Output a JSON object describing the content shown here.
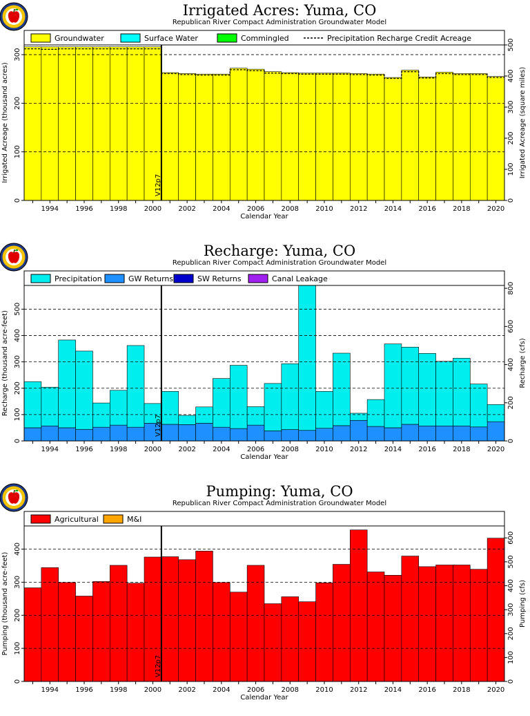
{
  "chart_data": [
    {
      "type": "area",
      "title": "Irrigated Acres: Yuma, CO",
      "subtitle": "Republican River Compact Administration Groundwater Model",
      "xlabel": "Calendar Year",
      "ylabel": "Irrigated Acreage (thousand acres)",
      "ylabel_right": "Irrigated Acreage (square miles)",
      "xlim": [
        1992.5,
        2020.5
      ],
      "ylim": [
        0,
        320
      ],
      "ylim_right": [
        0,
        500
      ],
      "x_ticks": [
        "1994",
        "1996",
        "1998",
        "2000",
        "2002",
        "2004",
        "2006",
        "2008",
        "2010",
        "2012",
        "2014",
        "2016",
        "2018",
        "2020"
      ],
      "y_ticks": [
        "0",
        "100",
        "200",
        "300"
      ],
      "y_ticks_right": [
        "0",
        "100",
        "200",
        "300",
        "400",
        "500"
      ],
      "grid": true,
      "legend_position": "top",
      "legend": [
        {
          "name": "Groundwater",
          "color": "#ffff00",
          "style": "box"
        },
        {
          "name": "Surface Water",
          "color": "#00ffff",
          "style": "box"
        },
        {
          "name": "Commingled",
          "color": "#00ff00",
          "style": "box"
        },
        {
          "name": "Precipitation Recharge Credit Acreage",
          "color": "#000000",
          "style": "dashed"
        }
      ],
      "x": [
        1993,
        1994,
        1995,
        1996,
        1997,
        1998,
        1999,
        2000,
        2001,
        2002,
        2003,
        2004,
        2005,
        2006,
        2007,
        2008,
        2009,
        2010,
        2011,
        2012,
        2013,
        2014,
        2015,
        2016,
        2017,
        2018,
        2019,
        2020
      ],
      "series": [
        {
          "name": "Groundwater",
          "color": "#ffff00",
          "values": [
            316,
            316,
            316,
            316,
            316,
            316,
            316,
            316,
            263,
            261,
            260,
            260,
            272,
            270,
            265,
            263,
            262,
            262,
            262,
            261,
            260,
            253,
            268,
            254,
            264,
            261,
            261,
            255
          ]
        },
        {
          "name": "Surface Water",
          "color": "#00ffff",
          "values": [
            0,
            0,
            0,
            0,
            0,
            0,
            0,
            0,
            0,
            0,
            0,
            0,
            0,
            0,
            0,
            0,
            0,
            0,
            0,
            0,
            0,
            0,
            0,
            0,
            0,
            0,
            0,
            0
          ]
        },
        {
          "name": "Commingled",
          "color": "#00ff00",
          "values": [
            0,
            0,
            0,
            0,
            0,
            0,
            0,
            0,
            0,
            0,
            0,
            0,
            0,
            0,
            0,
            0,
            0,
            0,
            0,
            0,
            0,
            0,
            0,
            0,
            0,
            0,
            0,
            0
          ]
        },
        {
          "name": "Precipitation Recharge Credit Acreage",
          "color": "#000000",
          "values": [
            312,
            311,
            312,
            312,
            312,
            312,
            312,
            312,
            261,
            259,
            258,
            258,
            269,
            267,
            262,
            261,
            260,
            260,
            260,
            259,
            258,
            251,
            265,
            252,
            261,
            259,
            259,
            253
          ]
        }
      ],
      "marker": {
        "x": 2000.5,
        "label": "V12p7"
      }
    },
    {
      "type": "area",
      "title": "Recharge: Yuma, CO",
      "subtitle": "Republican River Compact Administration Groundwater Model",
      "xlabel": "Calendar Year",
      "ylabel": "Recharge (thousand acre-feet)",
      "ylabel_right": "Recharge (cfs)",
      "xlim": [
        1992.5,
        2020.5
      ],
      "ylim": [
        0,
        590
      ],
      "ylim_right": [
        0,
        815
      ],
      "x_ticks": [
        "1994",
        "1996",
        "1998",
        "2000",
        "2002",
        "2004",
        "2006",
        "2008",
        "2010",
        "2012",
        "2014",
        "2016",
        "2018",
        "2020"
      ],
      "y_ticks": [
        "0",
        "100",
        "200",
        "300",
        "400",
        "500"
      ],
      "y_ticks_right": [
        "0",
        "200",
        "400",
        "600",
        "800"
      ],
      "grid": true,
      "legend_position": "top",
      "legend": [
        {
          "name": "Precipitation",
          "color": "#00eeee",
          "style": "box"
        },
        {
          "name": "GW Returns",
          "color": "#1e90ff",
          "style": "box"
        },
        {
          "name": "SW Returns",
          "color": "#0000cd",
          "style": "box"
        },
        {
          "name": "Canal Leakage",
          "color": "#a020f0",
          "style": "box"
        }
      ],
      "x": [
        1993,
        1994,
        1995,
        1996,
        1997,
        1998,
        1999,
        2000,
        2001,
        2002,
        2003,
        2004,
        2005,
        2006,
        2007,
        2008,
        2009,
        2010,
        2011,
        2012,
        2013,
        2014,
        2015,
        2016,
        2017,
        2018,
        2019,
        2020
      ],
      "series": [
        {
          "name": "GW Returns",
          "color": "#1e90ff",
          "values": [
            50,
            57,
            50,
            44,
            52,
            60,
            52,
            67,
            63,
            62,
            67,
            52,
            47,
            60,
            38,
            43,
            40,
            48,
            58,
            78,
            55,
            50,
            63,
            57,
            57,
            57,
            53,
            73
          ]
        },
        {
          "name": "Precipitation",
          "color": "#00eeee",
          "values": [
            175,
            147,
            333,
            297,
            92,
            132,
            310,
            75,
            125,
            35,
            62,
            185,
            240,
            70,
            180,
            250,
            550,
            140,
            275,
            27,
            102,
            318,
            293,
            275,
            245,
            257,
            163,
            65
          ]
        }
      ],
      "marker": {
        "x": 2000.5,
        "label": "V12p7"
      }
    },
    {
      "type": "area",
      "title": "Pumping: Yuma, CO",
      "subtitle": "Republican River Compact Administration Groundwater Model",
      "xlabel": "Calendar Year",
      "ylabel": "Pumping (thousand acre-feet)",
      "ylabel_right": "Pumping (cfs)",
      "xlim": [
        1992.5,
        2020.5
      ],
      "ylim": [
        0,
        470
      ],
      "ylim_right": [
        0,
        650
      ],
      "x_ticks": [
        "1994",
        "1996",
        "1998",
        "2000",
        "2002",
        "2004",
        "2006",
        "2008",
        "2010",
        "2012",
        "2014",
        "2016",
        "2018",
        "2020"
      ],
      "y_ticks": [
        "0",
        "100",
        "200",
        "300",
        "400"
      ],
      "y_ticks_right": [
        "0",
        "100",
        "200",
        "300",
        "400",
        "500",
        "600"
      ],
      "grid": true,
      "legend_position": "top",
      "legend": [
        {
          "name": "Agricultural",
          "color": "#ff0000",
          "style": "box"
        },
        {
          "name": "M&I",
          "color": "#ffa500",
          "style": "box"
        }
      ],
      "x": [
        1993,
        1994,
        1995,
        1996,
        1997,
        1998,
        1999,
        2000,
        2001,
        2002,
        2003,
        2004,
        2005,
        2006,
        2007,
        2008,
        2009,
        2010,
        2011,
        2012,
        2013,
        2014,
        2015,
        2016,
        2017,
        2018,
        2019,
        2020
      ],
      "series": [
        {
          "name": "Agricultural",
          "color": "#ff0000",
          "values": [
            283,
            344,
            299,
            258,
            302,
            351,
            297,
            376,
            377,
            368,
            394,
            299,
            270,
            351,
            235,
            256,
            241,
            298,
            354,
            458,
            331,
            321,
            379,
            347,
            352,
            352,
            339,
            433
          ]
        },
        {
          "name": "M&I",
          "color": "#ffa500",
          "values": [
            0,
            0,
            0,
            0,
            0,
            0,
            0,
            0,
            0,
            0,
            0,
            0,
            0,
            0,
            0,
            0,
            0,
            0,
            0,
            0,
            0,
            0,
            0,
            0,
            0,
            0,
            0,
            0
          ]
        }
      ],
      "marker": {
        "x": 2000.5,
        "label": "V12p7"
      }
    }
  ]
}
